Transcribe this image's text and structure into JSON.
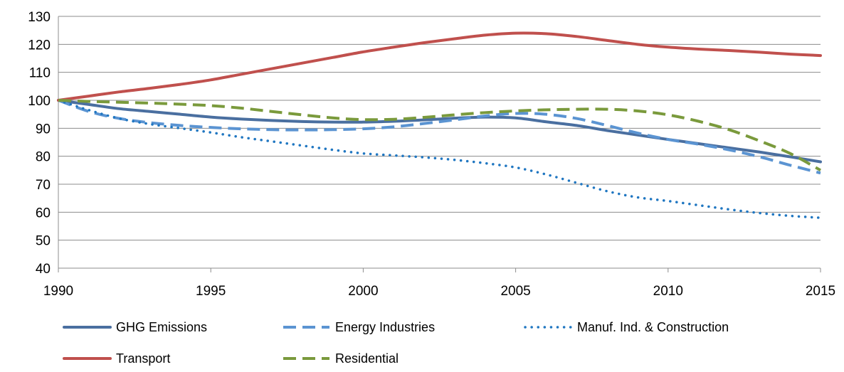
{
  "chart_data": {
    "type": "line",
    "title": "",
    "xlabel": "",
    "ylabel": "",
    "xlim": [
      1990,
      2015
    ],
    "ylim": [
      40,
      130
    ],
    "x_ticks": [
      "1990",
      "1995",
      "2000",
      "2005",
      "2010",
      "2015"
    ],
    "y_ticks": [
      "40",
      "50",
      "60",
      "70",
      "80",
      "90",
      "100",
      "110",
      "120",
      "130"
    ],
    "grid": "horizontal",
    "legend_position": "bottom",
    "x": [
      1990,
      1991,
      1992,
      1993,
      1994,
      1995,
      1996,
      1997,
      1998,
      1999,
      2000,
      2001,
      2002,
      2003,
      2004,
      2005,
      2006,
      2007,
      2008,
      2009,
      2010,
      2011,
      2012,
      2013,
      2014,
      2015
    ],
    "series": [
      {
        "name": "GHG Emissions",
        "color": "#4a6fa0",
        "dash": "solid",
        "values": [
          100,
          98.5,
          97,
          96,
          95,
          94,
          93.3,
          92.8,
          92.4,
          92.2,
          92.2,
          92.5,
          93,
          93.6,
          94,
          93.7,
          92.3,
          91,
          89.2,
          87.6,
          86,
          84.5,
          83,
          81.5,
          79.8,
          78
        ]
      },
      {
        "name": "Energy Industries",
        "color": "#5b94d2",
        "dash": "dashed",
        "values": [
          100,
          96,
          93.5,
          92,
          91,
          90.3,
          89.8,
          89.5,
          89.4,
          89.5,
          89.8,
          90.5,
          91.7,
          93,
          94.4,
          95.3,
          95,
          93.5,
          91,
          88.3,
          86,
          84.3,
          82.3,
          79.8,
          76.8,
          74
        ]
      },
      {
        "name": "Manuf. Ind. & Construction",
        "color": "#1f76c1",
        "dash": "dotted",
        "values": [
          100,
          96.5,
          93.5,
          91.5,
          90,
          88.5,
          86.8,
          85.3,
          83.8,
          82.3,
          81,
          80.3,
          79.6,
          78.7,
          77.5,
          76,
          73.5,
          70.5,
          67.5,
          65.3,
          64,
          62.5,
          61,
          59.7,
          58.7,
          58
        ]
      },
      {
        "name": "Transport",
        "color": "#c0504d",
        "dash": "solid",
        "values": [
          100,
          101.5,
          103,
          104.3,
          105.7,
          107.3,
          109.3,
          111.3,
          113.3,
          115.3,
          117.3,
          119,
          120.6,
          122,
          123.3,
          124,
          123.8,
          122.8,
          121.4,
          120,
          119,
          118.3,
          117.8,
          117.2,
          116.5,
          116
        ]
      },
      {
        "name": "Residential",
        "color": "#7a9a3c",
        "dash": "dashed",
        "values": [
          100,
          99.6,
          99.3,
          99,
          98.6,
          98.1,
          97.2,
          96,
          94.8,
          93.7,
          93.1,
          93.2,
          93.9,
          94.8,
          95.6,
          96.2,
          96.6,
          96.8,
          96.8,
          96.2,
          94.8,
          92.5,
          89.5,
          85.5,
          81,
          75
        ]
      }
    ]
  }
}
